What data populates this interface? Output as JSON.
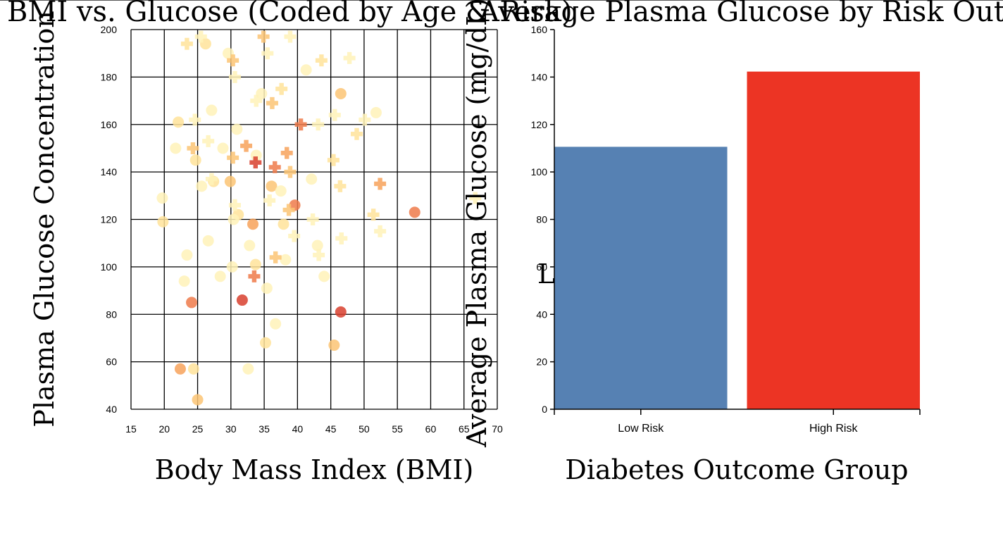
{
  "chart_data": [
    {
      "type": "scatter",
      "title": "BMI vs. Glucose (Coded by Age & Risk)",
      "xlabel": "Body Mass Index (BMI)",
      "ylabel": "Plasma Glucose Concentration",
      "xlim": [
        15,
        70
      ],
      "ylim": [
        40,
        200
      ],
      "xticks": [
        "15",
        "20",
        "25",
        "30",
        "35",
        "40",
        "45",
        "50",
        "55",
        "60",
        "65",
        "70"
      ],
      "yticks": [
        "40",
        "60",
        "80",
        "100",
        "120",
        "140",
        "160",
        "180",
        "200"
      ],
      "grid": true,
      "marker_note": "circles and crosses, color scale pale yellow to red",
      "colors": [
        "#fff2b8",
        "#ffe39a",
        "#fcc474",
        "#f7a25a",
        "#ee7a4a",
        "#d8402e"
      ],
      "series": [
        {
          "marker": "circle",
          "points": [
            [
              26.2,
              194
            ],
            [
              22.1,
              161
            ],
            [
              27.1,
              166
            ],
            [
              25.6,
              134
            ],
            [
              30.9,
              158
            ],
            [
              19.8,
              119
            ],
            [
              21.7,
              150
            ],
            [
              22.4,
              57
            ],
            [
              33.7,
              101
            ],
            [
              35.4,
              91
            ],
            [
              23.0,
              94
            ],
            [
              46.5,
              173
            ],
            [
              45.5,
              67
            ],
            [
              43.0,
              109
            ],
            [
              24.7,
              145
            ],
            [
              29.6,
              190
            ],
            [
              36.1,
              134
            ],
            [
              32.6,
              57
            ],
            [
              35.2,
              68
            ],
            [
              27.4,
              136
            ],
            [
              41.3,
              183
            ],
            [
              51.8,
              165
            ],
            [
              57.6,
              123
            ],
            [
              46.5,
              81
            ],
            [
              23.4,
              105
            ],
            [
              30.2,
              100
            ],
            [
              39.6,
              126
            ],
            [
              33.8,
              147
            ],
            [
              38.2,
              103
            ],
            [
              24.4,
              57
            ],
            [
              29.9,
              136
            ],
            [
              28.8,
              150
            ],
            [
              34.6,
              173
            ],
            [
              31.7,
              86
            ],
            [
              26.6,
              111
            ],
            [
              37.5,
              132
            ],
            [
              31.1,
              122
            ],
            [
              42.1,
              137
            ],
            [
              30.4,
              120
            ],
            [
              25.0,
              44
            ],
            [
              32.8,
              109
            ],
            [
              36.7,
              76
            ],
            [
              19.7,
              129
            ],
            [
              24.1,
              85
            ],
            [
              28.4,
              96
            ],
            [
              33.3,
              118
            ],
            [
              37.9,
              118
            ],
            [
              44.0,
              96
            ]
          ]
        },
        {
          "marker": "cross",
          "points": [
            [
              23.4,
              194
            ],
            [
              25.5,
              197
            ],
            [
              30.3,
              187
            ],
            [
              34.9,
              197
            ],
            [
              35.5,
              190
            ],
            [
              38.9,
              197
            ],
            [
              43.6,
              187
            ],
            [
              47.8,
              188
            ],
            [
              30.6,
              180
            ],
            [
              33.8,
              170
            ],
            [
              36.2,
              169
            ],
            [
              37.6,
              175
            ],
            [
              40.5,
              160
            ],
            [
              43.1,
              160
            ],
            [
              45.6,
              164
            ],
            [
              48.9,
              156
            ],
            [
              50.1,
              162
            ],
            [
              52.4,
              135
            ],
            [
              51.4,
              122
            ],
            [
              52.4,
              115
            ],
            [
              66.7,
              129
            ],
            [
              24.6,
              162
            ],
            [
              24.3,
              150
            ],
            [
              26.6,
              153
            ],
            [
              27.1,
              137
            ],
            [
              30.3,
              146
            ],
            [
              32.3,
              151
            ],
            [
              33.7,
              144
            ],
            [
              36.6,
              142
            ],
            [
              38.4,
              148
            ],
            [
              38.9,
              140
            ],
            [
              45.4,
              145
            ],
            [
              46.4,
              134
            ],
            [
              42.3,
              120
            ],
            [
              39.5,
              113
            ],
            [
              46.6,
              112
            ],
            [
              30.6,
              126
            ],
            [
              35.8,
              128
            ],
            [
              38.7,
              124
            ],
            [
              36.7,
              104
            ],
            [
              43.2,
              105
            ],
            [
              33.5,
              96
            ]
          ]
        }
      ]
    },
    {
      "type": "bar",
      "title": "Average Plasma Glucose by Risk Outcome",
      "xlabel": "Diabetes Outcome Group",
      "ylabel": "Average Plasma Glucose (mg/dL)",
      "ylim": [
        0,
        160
      ],
      "yticks": [
        "0",
        "20",
        "40",
        "60",
        "80",
        "100",
        "120",
        "140",
        "160"
      ],
      "categories": [
        "Low Risk",
        "High Risk"
      ],
      "values": [
        110.6,
        142.3
      ],
      "bar_colors": [
        "#5681b3",
        "#ec3424"
      ],
      "stray_glyph": "L"
    }
  ]
}
